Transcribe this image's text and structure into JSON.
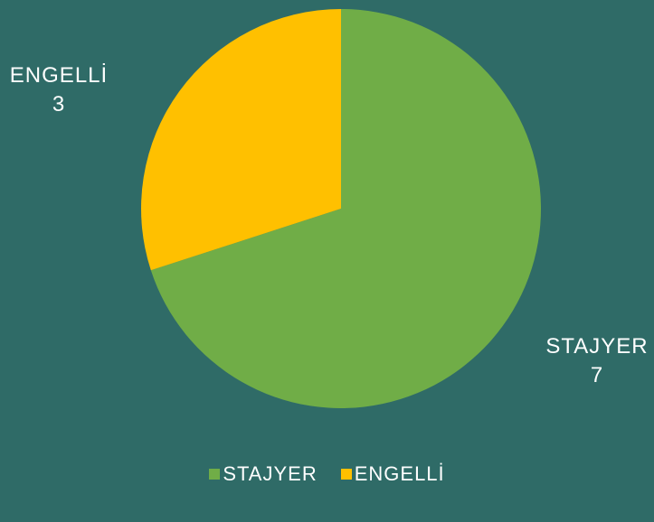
{
  "chart_data": {
    "type": "pie",
    "categories": [
      "STAJYER",
      "ENGELLİ"
    ],
    "values": [
      7,
      3
    ],
    "data_labels": [
      {
        "name": "STAJYER",
        "value": "7"
      },
      {
        "name": "ENGELLİ",
        "value": "3"
      }
    ],
    "legend": {
      "placement": "bottom",
      "entries": [
        "STAJYER",
        "ENGELLİ"
      ]
    },
    "colors": {
      "STAJYER": "#70ad47",
      "ENGELLİ": "#ffc000",
      "background": "#2f6b67"
    }
  }
}
